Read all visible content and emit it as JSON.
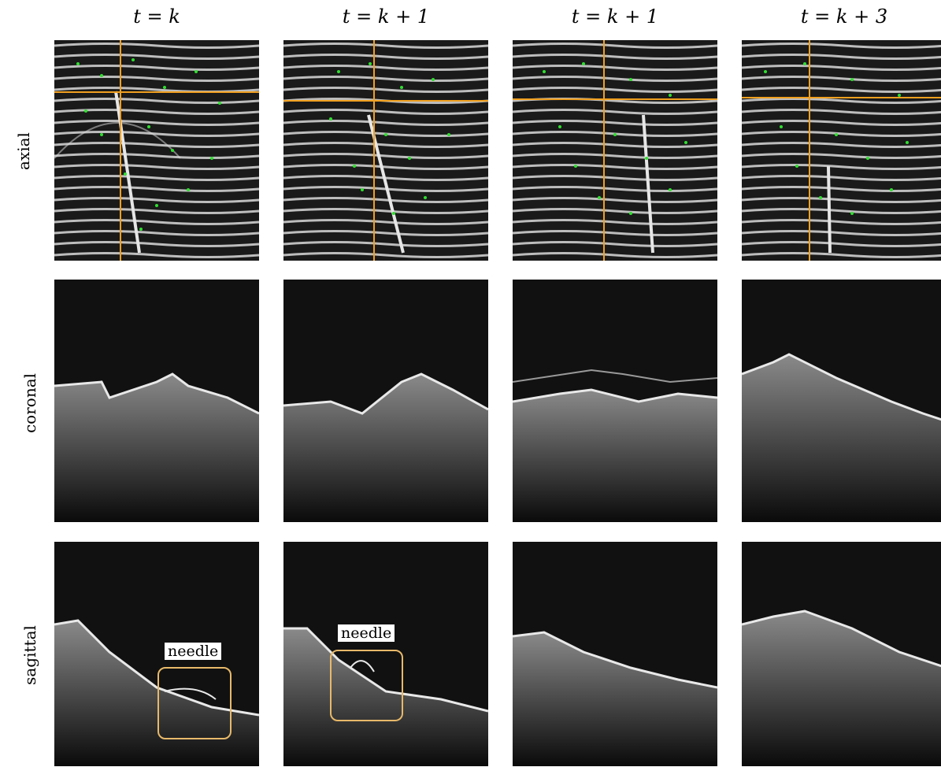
{
  "columns": [
    {
      "title": "t = k"
    },
    {
      "title": "t = k + 1"
    },
    {
      "title": "t = k + 1"
    },
    {
      "title": "t = k + 3"
    }
  ],
  "rows": [
    {
      "label": "axial"
    },
    {
      "label": "coronal"
    },
    {
      "label": "sagittal"
    }
  ],
  "annotations": {
    "needle_label": "needle"
  },
  "colors": {
    "crosshair": "#f0a020",
    "tracking_points": "#2ee02e",
    "needle_box": "#e8b96a"
  }
}
